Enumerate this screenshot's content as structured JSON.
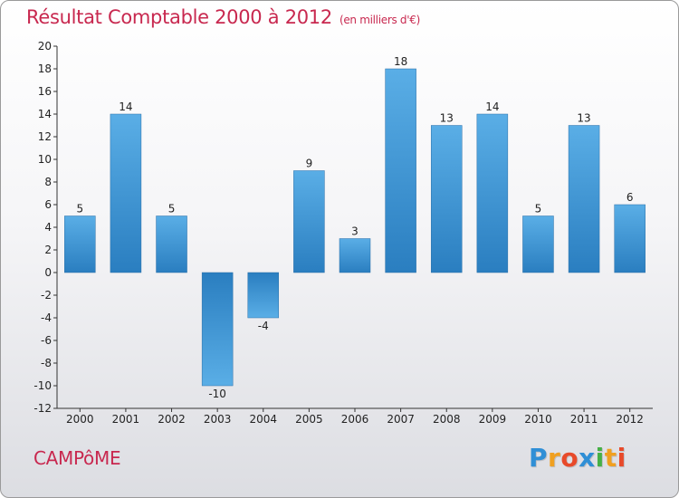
{
  "header": {
    "title": "Résultat Comptable 2000 à 2012",
    "subtitle": "(en milliers d'€)"
  },
  "footer": {
    "commune": "CAMPôME",
    "logo_letters": [
      {
        "char": "P",
        "color": "#2f8fd6"
      },
      {
        "char": "r",
        "color": "#f0a020"
      },
      {
        "char": "o",
        "color": "#e84a2a"
      },
      {
        "char": "x",
        "color": "#2f8fd6"
      },
      {
        "char": "i",
        "color": "#46b046"
      },
      {
        "char": "t",
        "color": "#f0a020"
      },
      {
        "char": "i",
        "color": "#e84a2a"
      }
    ]
  },
  "chart_data": {
    "type": "bar",
    "title": "Résultat Comptable 2000 à 2012",
    "subtitle": "(en milliers d'€)",
    "categories": [
      "2000",
      "2001",
      "2002",
      "2003",
      "2004",
      "2005",
      "2006",
      "2007",
      "2008",
      "2009",
      "2010",
      "2011",
      "2012"
    ],
    "values": [
      5,
      14,
      5,
      -10,
      -4,
      9,
      3,
      18,
      13,
      14,
      5,
      13,
      6
    ],
    "data_labels": [
      "5",
      "14",
      "5",
      "-10",
      "-4",
      "9",
      "3",
      "18",
      "13",
      "14",
      "5",
      "13",
      "6"
    ],
    "ylim": [
      -12,
      20
    ],
    "yticks": [
      20,
      18,
      16,
      14,
      12,
      10,
      8,
      6,
      4,
      2,
      0,
      -2,
      -4,
      -6,
      -8,
      -10,
      -12
    ],
    "grid": false,
    "bar_color_light": "#5aaee6",
    "bar_color_dark": "#2a7ec0"
  }
}
